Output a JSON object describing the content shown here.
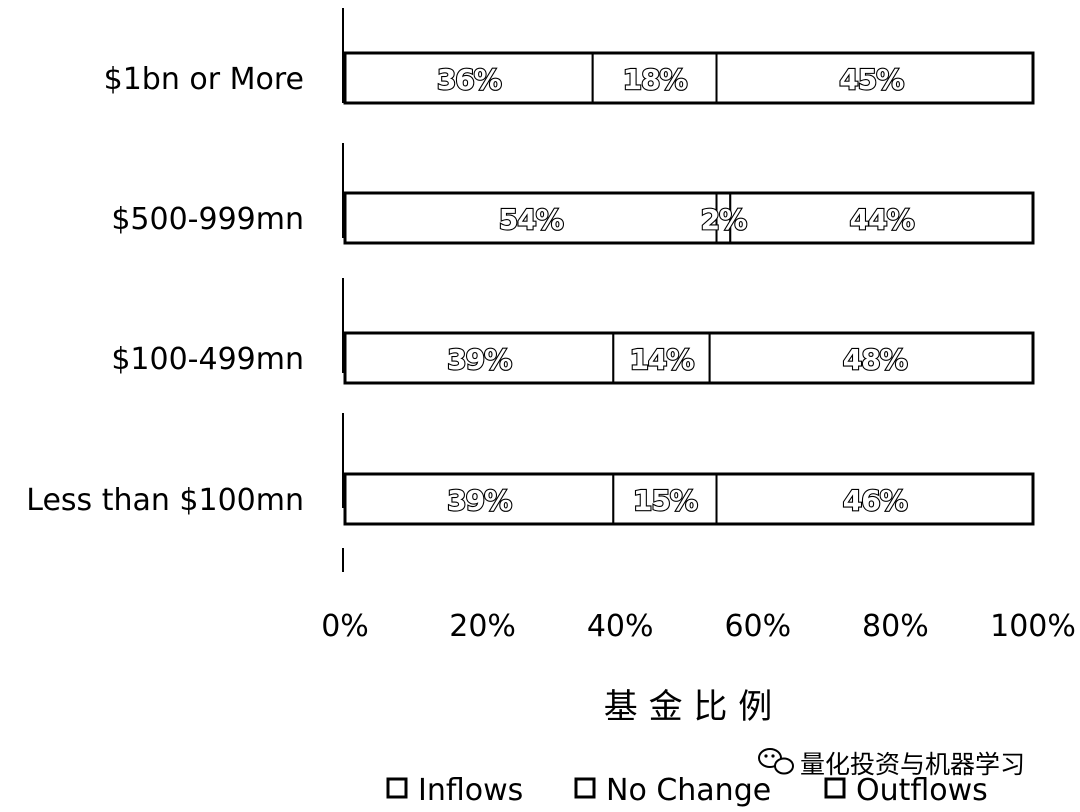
{
  "chart_data": {
    "type": "bar",
    "orientation": "horizontal",
    "stacked": true,
    "percent": true,
    "categories": [
      "$1bn or More",
      "$500-999mn",
      "$100-499mn",
      "Less than $100mn"
    ],
    "series": [
      {
        "name": "Inflows",
        "values": [
          36,
          54,
          39,
          39
        ],
        "labels": [
          "36%",
          "54%",
          "39%",
          "39%"
        ]
      },
      {
        "name": "No Change",
        "values": [
          18,
          2,
          14,
          15
        ],
        "labels": [
          "18%",
          "2%",
          "14%",
          "15%"
        ]
      },
      {
        "name": "Outflows",
        "values": [
          45,
          44,
          48,
          46
        ],
        "labels": [
          "45%",
          "44%",
          "48%",
          "46%"
        ]
      }
    ],
    "xlim": [
      0,
      100
    ],
    "xticks": [
      "0%",
      "20%",
      "40%",
      "60%",
      "80%",
      "100%"
    ],
    "xlabel": "基 金 比 例",
    "ylabel": "",
    "title": "",
    "grid": false,
    "legend_position": "bottom",
    "colors": {
      "fill": "#ffffff",
      "stroke": "#000000"
    }
  },
  "watermark": {
    "text": "量化投资与机器学习",
    "icon": "wechat-icon"
  }
}
